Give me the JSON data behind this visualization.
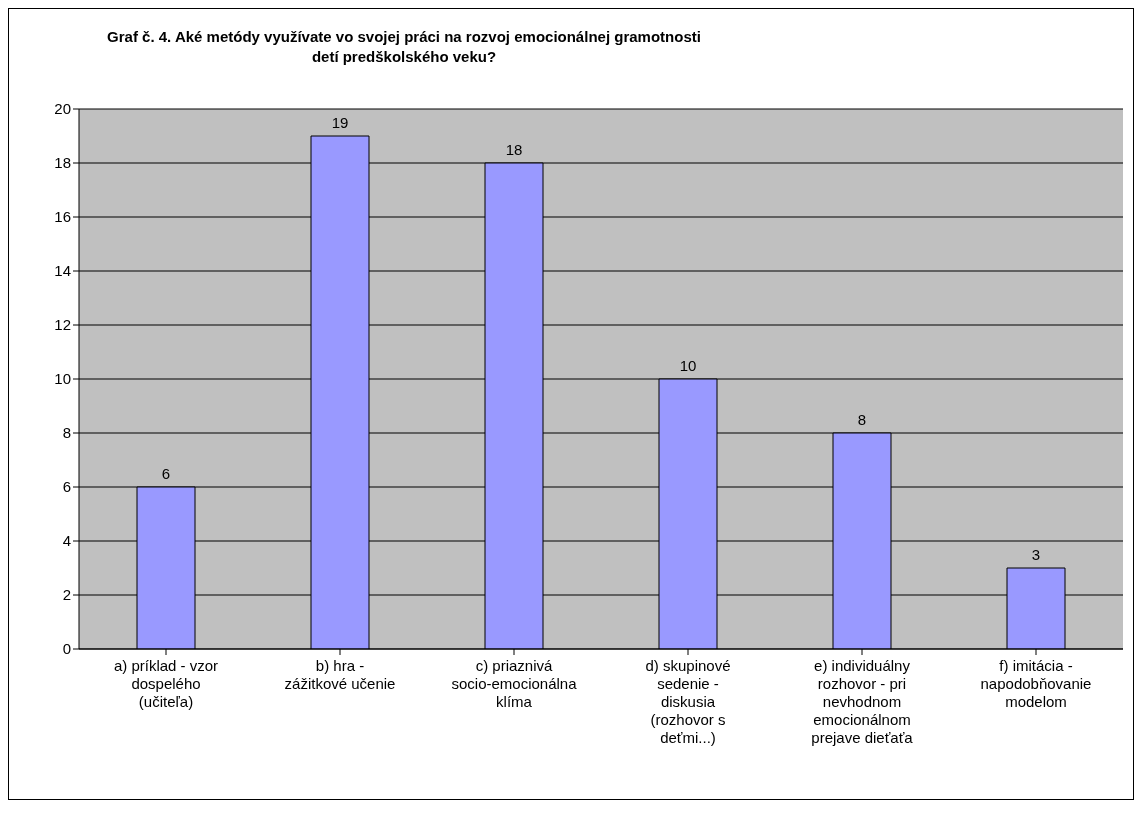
{
  "chart_data": {
    "type": "bar",
    "title": "Graf č. 4. Aké metódy využívate vo svojej práci na rozvoj emocionálnej gramotnosti detí predškolského veku?",
    "categories": [
      "a) príklad - vzor dospelého (učiteľa)",
      "b) hra - zážitkové učenie",
      "c) priaznivá socio-emocionálna klíma",
      "d) skupinové sedenie - diskusia (rozhovor s deťmi...)",
      "e) individuálny rozhovor - pri nevhodnom emocionálnom prejave dieťaťa",
      "f) imitácia - napodobňovanie modelom"
    ],
    "values": [
      6,
      19,
      18,
      10,
      8,
      3
    ],
    "color": "#9999ff",
    "ylim": [
      0,
      20
    ],
    "yticks": [
      0,
      2,
      4,
      6,
      8,
      10,
      12,
      14,
      16,
      18,
      20
    ],
    "grid": "y",
    "data_labels": true
  }
}
